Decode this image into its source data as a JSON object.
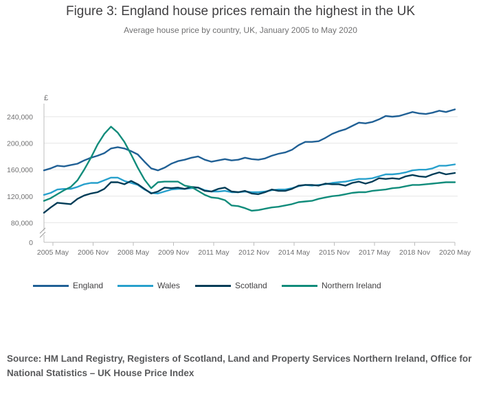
{
  "title": "Figure 3: England house prices remain the highest in the UK",
  "subtitle": "Average house price by country, UK, January 2005 to May 2020",
  "source": "Source: HM Land Registry, Registers of Scotland, Land and Property Services Northern Ireland, Office for National Statistics – UK House Price Index",
  "colors": {
    "England": "#206095",
    "Wales": "#27a0cc",
    "Scotland": "#003c57",
    "Northern Ireland": "#118c7b",
    "grid": "#e6e6e6",
    "axis": "#bcbcbc"
  },
  "chart_data": {
    "type": "line",
    "title": "Figure 3: England house prices remain the highest in the UK",
    "subtitle": "Average house price by country, UK, January 2005 to May 2020",
    "ylabel": "£",
    "xlabel": "",
    "ylim": [
      0,
      260000
    ],
    "axis_break": [
      0,
      80000
    ],
    "y_ticks": [
      {
        "value": 0,
        "label": "0"
      },
      {
        "value": 80000,
        "label": "80,000"
      },
      {
        "value": 120000,
        "label": "120,000"
      },
      {
        "value": 160000,
        "label": "160,000"
      },
      {
        "value": 200000,
        "label": "200,000"
      },
      {
        "value": 240000,
        "label": "240,000"
      }
    ],
    "x_range": [
      2005.0,
      2020.333
    ],
    "x_ticks": [
      {
        "value": 2005.333,
        "label": "2005 May"
      },
      {
        "value": 2006.833,
        "label": "2006 Nov"
      },
      {
        "value": 2008.333,
        "label": "2008 May"
      },
      {
        "value": 2009.833,
        "label": "2009 Nov"
      },
      {
        "value": 2011.333,
        "label": "2011 May"
      },
      {
        "value": 2012.833,
        "label": "2012 Nov"
      },
      {
        "value": 2014.333,
        "label": "2014 May"
      },
      {
        "value": 2015.833,
        "label": "2015 Nov"
      },
      {
        "value": 2017.333,
        "label": "2017 May"
      },
      {
        "value": 2018.833,
        "label": "2018 Nov"
      },
      {
        "value": 2020.333,
        "label": "2020 May"
      }
    ],
    "legend_position": "bottom",
    "series": [
      {
        "name": "England",
        "points": [
          [
            2005.0,
            159000
          ],
          [
            2005.25,
            162000
          ],
          [
            2005.5,
            166000
          ],
          [
            2005.75,
            165000
          ],
          [
            2006.0,
            167000
          ],
          [
            2006.25,
            169000
          ],
          [
            2006.5,
            174000
          ],
          [
            2006.75,
            178000
          ],
          [
            2007.0,
            181000
          ],
          [
            2007.25,
            185000
          ],
          [
            2007.5,
            192000
          ],
          [
            2007.75,
            194000
          ],
          [
            2008.0,
            192000
          ],
          [
            2008.25,
            188000
          ],
          [
            2008.5,
            183000
          ],
          [
            2008.75,
            172000
          ],
          [
            2009.0,
            162000
          ],
          [
            2009.25,
            159000
          ],
          [
            2009.5,
            163000
          ],
          [
            2009.75,
            169000
          ],
          [
            2010.0,
            173000
          ],
          [
            2010.25,
            175000
          ],
          [
            2010.5,
            178000
          ],
          [
            2010.75,
            180000
          ],
          [
            2011.0,
            175000
          ],
          [
            2011.25,
            172000
          ],
          [
            2011.5,
            174000
          ],
          [
            2011.75,
            176000
          ],
          [
            2012.0,
            174000
          ],
          [
            2012.25,
            175000
          ],
          [
            2012.5,
            178000
          ],
          [
            2012.75,
            176000
          ],
          [
            2013.0,
            175000
          ],
          [
            2013.25,
            177000
          ],
          [
            2013.5,
            181000
          ],
          [
            2013.75,
            184000
          ],
          [
            2014.0,
            186000
          ],
          [
            2014.25,
            190000
          ],
          [
            2014.5,
            197000
          ],
          [
            2014.75,
            202000
          ],
          [
            2015.0,
            202000
          ],
          [
            2015.25,
            203000
          ],
          [
            2015.5,
            208000
          ],
          [
            2015.75,
            214000
          ],
          [
            2016.0,
            218000
          ],
          [
            2016.25,
            221000
          ],
          [
            2016.5,
            226000
          ],
          [
            2016.75,
            231000
          ],
          [
            2017.0,
            230000
          ],
          [
            2017.25,
            232000
          ],
          [
            2017.5,
            236000
          ],
          [
            2017.75,
            241000
          ],
          [
            2018.0,
            240000
          ],
          [
            2018.25,
            241000
          ],
          [
            2018.5,
            244000
          ],
          [
            2018.75,
            247000
          ],
          [
            2019.0,
            245000
          ],
          [
            2019.25,
            244000
          ],
          [
            2019.5,
            246000
          ],
          [
            2019.75,
            249000
          ],
          [
            2020.0,
            247000
          ],
          [
            2020.333,
            251000
          ]
        ]
      },
      {
        "name": "Wales",
        "points": [
          [
            2005.0,
            122000
          ],
          [
            2005.25,
            125000
          ],
          [
            2005.5,
            130000
          ],
          [
            2005.75,
            131000
          ],
          [
            2006.0,
            131000
          ],
          [
            2006.25,
            134000
          ],
          [
            2006.5,
            138000
          ],
          [
            2006.75,
            140000
          ],
          [
            2007.0,
            140000
          ],
          [
            2007.25,
            144000
          ],
          [
            2007.5,
            148000
          ],
          [
            2007.75,
            148000
          ],
          [
            2008.0,
            143000
          ],
          [
            2008.25,
            140000
          ],
          [
            2008.5,
            137000
          ],
          [
            2008.75,
            130000
          ],
          [
            2009.0,
            125000
          ],
          [
            2009.25,
            124000
          ],
          [
            2009.5,
            127000
          ],
          [
            2009.75,
            130000
          ],
          [
            2010.0,
            131000
          ],
          [
            2010.25,
            131000
          ],
          [
            2010.5,
            132000
          ],
          [
            2010.75,
            133000
          ],
          [
            2011.0,
            129000
          ],
          [
            2011.25,
            127000
          ],
          [
            2011.5,
            127000
          ],
          [
            2011.75,
            128000
          ],
          [
            2012.0,
            126000
          ],
          [
            2012.25,
            126000
          ],
          [
            2012.5,
            127000
          ],
          [
            2012.75,
            126000
          ],
          [
            2013.0,
            126000
          ],
          [
            2013.25,
            127000
          ],
          [
            2013.5,
            129000
          ],
          [
            2013.75,
            130000
          ],
          [
            2014.0,
            130000
          ],
          [
            2014.25,
            132000
          ],
          [
            2014.5,
            135000
          ],
          [
            2014.75,
            137000
          ],
          [
            2015.0,
            136000
          ],
          [
            2015.25,
            137000
          ],
          [
            2015.5,
            138000
          ],
          [
            2015.75,
            140000
          ],
          [
            2016.0,
            141000
          ],
          [
            2016.25,
            142000
          ],
          [
            2016.5,
            144000
          ],
          [
            2016.75,
            146000
          ],
          [
            2017.0,
            146000
          ],
          [
            2017.25,
            147000
          ],
          [
            2017.5,
            150000
          ],
          [
            2017.75,
            153000
          ],
          [
            2018.0,
            153000
          ],
          [
            2018.25,
            154000
          ],
          [
            2018.5,
            156000
          ],
          [
            2018.75,
            159000
          ],
          [
            2019.0,
            160000
          ],
          [
            2019.25,
            160000
          ],
          [
            2019.5,
            162000
          ],
          [
            2019.75,
            166000
          ],
          [
            2020.0,
            166000
          ],
          [
            2020.333,
            168000
          ]
        ]
      },
      {
        "name": "Scotland",
        "points": [
          [
            2005.0,
            95000
          ],
          [
            2005.25,
            103000
          ],
          [
            2005.5,
            110000
          ],
          [
            2005.75,
            109000
          ],
          [
            2006.0,
            108000
          ],
          [
            2006.25,
            116000
          ],
          [
            2006.5,
            121000
          ],
          [
            2006.75,
            124000
          ],
          [
            2007.0,
            126000
          ],
          [
            2007.25,
            131000
          ],
          [
            2007.5,
            141000
          ],
          [
            2007.75,
            141000
          ],
          [
            2008.0,
            138000
          ],
          [
            2008.25,
            143000
          ],
          [
            2008.5,
            138000
          ],
          [
            2008.75,
            131000
          ],
          [
            2009.0,
            124000
          ],
          [
            2009.25,
            127000
          ],
          [
            2009.5,
            133000
          ],
          [
            2009.75,
            132000
          ],
          [
            2010.0,
            133000
          ],
          [
            2010.25,
            131000
          ],
          [
            2010.5,
            134000
          ],
          [
            2010.75,
            133000
          ],
          [
            2011.0,
            128000
          ],
          [
            2011.25,
            127000
          ],
          [
            2011.5,
            131000
          ],
          [
            2011.75,
            133000
          ],
          [
            2012.0,
            127000
          ],
          [
            2012.25,
            126000
          ],
          [
            2012.5,
            128000
          ],
          [
            2012.75,
            124000
          ],
          [
            2013.0,
            123000
          ],
          [
            2013.25,
            126000
          ],
          [
            2013.5,
            130000
          ],
          [
            2013.75,
            128000
          ],
          [
            2014.0,
            128000
          ],
          [
            2014.25,
            131000
          ],
          [
            2014.5,
            136000
          ],
          [
            2014.75,
            137000
          ],
          [
            2015.0,
            137000
          ],
          [
            2015.25,
            136000
          ],
          [
            2015.5,
            139000
          ],
          [
            2015.75,
            138000
          ],
          [
            2016.0,
            138000
          ],
          [
            2016.25,
            136000
          ],
          [
            2016.5,
            140000
          ],
          [
            2016.75,
            142000
          ],
          [
            2017.0,
            139000
          ],
          [
            2017.25,
            142000
          ],
          [
            2017.5,
            147000
          ],
          [
            2017.75,
            146000
          ],
          [
            2018.0,
            147000
          ],
          [
            2018.25,
            146000
          ],
          [
            2018.5,
            150000
          ],
          [
            2018.75,
            152000
          ],
          [
            2019.0,
            150000
          ],
          [
            2019.25,
            149000
          ],
          [
            2019.5,
            153000
          ],
          [
            2019.75,
            156000
          ],
          [
            2020.0,
            153000
          ],
          [
            2020.333,
            155000
          ]
        ]
      },
      {
        "name": "Northern Ireland",
        "points": [
          [
            2005.0,
            113000
          ],
          [
            2005.25,
            117000
          ],
          [
            2005.5,
            123000
          ],
          [
            2005.75,
            129000
          ],
          [
            2006.0,
            134000
          ],
          [
            2006.25,
            144000
          ],
          [
            2006.5,
            160000
          ],
          [
            2006.75,
            178000
          ],
          [
            2007.0,
            198000
          ],
          [
            2007.25,
            214000
          ],
          [
            2007.5,
            225000
          ],
          [
            2007.75,
            216000
          ],
          [
            2008.0,
            202000
          ],
          [
            2008.25,
            183000
          ],
          [
            2008.5,
            163000
          ],
          [
            2008.75,
            145000
          ],
          [
            2009.0,
            132000
          ],
          [
            2009.25,
            141000
          ],
          [
            2009.5,
            142000
          ],
          [
            2009.75,
            142000
          ],
          [
            2010.0,
            142000
          ],
          [
            2010.25,
            136000
          ],
          [
            2010.5,
            134000
          ],
          [
            2010.75,
            128000
          ],
          [
            2011.0,
            122000
          ],
          [
            2011.25,
            118000
          ],
          [
            2011.5,
            117000
          ],
          [
            2011.75,
            114000
          ],
          [
            2012.0,
            106000
          ],
          [
            2012.25,
            105000
          ],
          [
            2012.5,
            102000
          ],
          [
            2012.75,
            98000
          ],
          [
            2013.0,
            99000
          ],
          [
            2013.25,
            101000
          ],
          [
            2013.5,
            103000
          ],
          [
            2013.75,
            104000
          ],
          [
            2014.0,
            106000
          ],
          [
            2014.25,
            108000
          ],
          [
            2014.5,
            111000
          ],
          [
            2014.75,
            112000
          ],
          [
            2015.0,
            113000
          ],
          [
            2015.25,
            116000
          ],
          [
            2015.5,
            118000
          ],
          [
            2015.75,
            120000
          ],
          [
            2016.0,
            121000
          ],
          [
            2016.25,
            123000
          ],
          [
            2016.5,
            125000
          ],
          [
            2016.75,
            126000
          ],
          [
            2017.0,
            126000
          ],
          [
            2017.25,
            128000
          ],
          [
            2017.5,
            129000
          ],
          [
            2017.75,
            130000
          ],
          [
            2018.0,
            132000
          ],
          [
            2018.25,
            133000
          ],
          [
            2018.5,
            135000
          ],
          [
            2018.75,
            137000
          ],
          [
            2019.0,
            137000
          ],
          [
            2019.25,
            138000
          ],
          [
            2019.5,
            139000
          ],
          [
            2019.75,
            140000
          ],
          [
            2020.0,
            141000
          ],
          [
            2020.333,
            141000
          ]
        ]
      }
    ]
  }
}
